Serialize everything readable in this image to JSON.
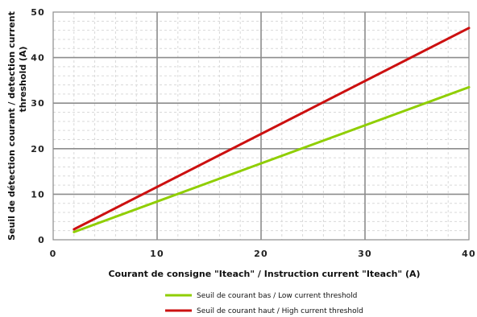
{
  "chart_data": {
    "type": "line",
    "xlabel": "Courant de consigne \"Iteach\" / Instruction current \"Iteach\" (A)",
    "ylabel_lines": [
      "Seuil de détection courant / detection current",
      "threshold (A)"
    ],
    "xlim": [
      0,
      40
    ],
    "ylim": [
      0,
      50
    ],
    "x_ticks": [
      0,
      10,
      20,
      30,
      40
    ],
    "y_ticks": [
      0,
      10,
      20,
      30,
      40,
      50
    ],
    "x_tick_labels": [
      "0",
      "10",
      "20",
      "30",
      "40"
    ],
    "y_tick_labels": [
      "0",
      "10",
      "20",
      "30",
      "40",
      "50"
    ],
    "grid": true,
    "legend_position": "bottom",
    "series": [
      {
        "name": "Seuil de courant bas / Low current threshold",
        "color": "#8fce00",
        "x": [
          2,
          40
        ],
        "y": [
          1.7,
          33.5
        ]
      },
      {
        "name": "Seuil de courant haut / High current threshold",
        "color": "#cc1010",
        "x": [
          2,
          40
        ],
        "y": [
          2.3,
          46.5
        ]
      }
    ]
  }
}
